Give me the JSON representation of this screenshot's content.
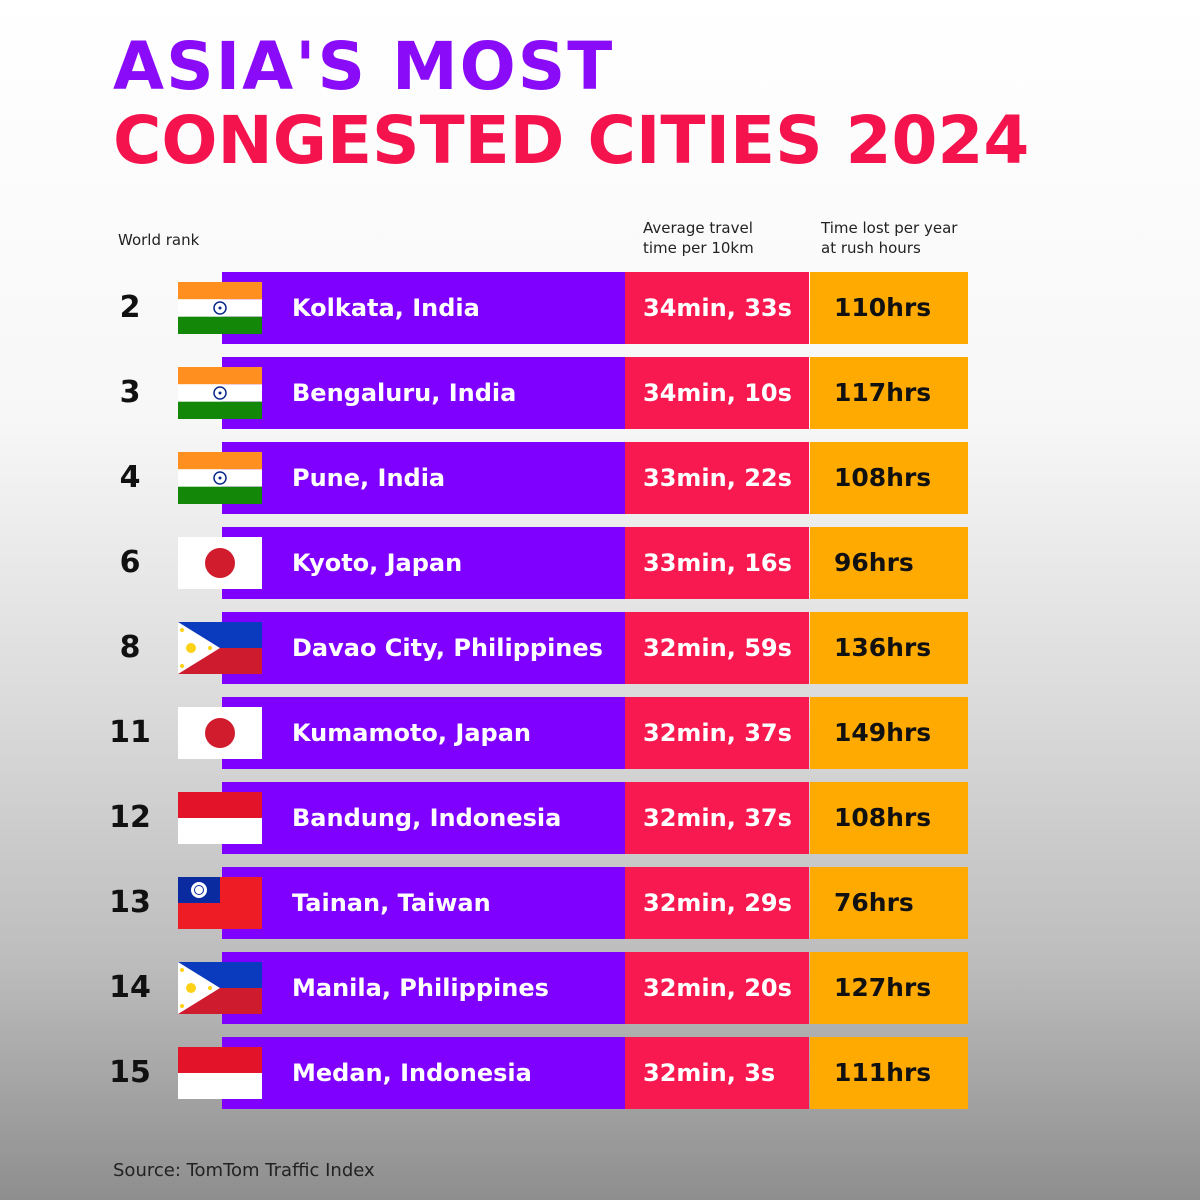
{
  "header": {
    "title_line1": "ASIA'S MOST",
    "title_line2": "CONGESTED CITIES 2024"
  },
  "table": {
    "columns": [
      "World rank",
      "Average travel time per 10km",
      "Time lost per year at rush hours"
    ],
    "rows": [
      [
        2,
        "Kolkata, India",
        "34min, 33s",
        "110hrs"
      ],
      [
        3,
        "Bengaluru, India",
        "34min, 10s",
        "117hrs"
      ],
      [
        4,
        "Pune, India",
        "33min, 22s",
        "108hrs"
      ],
      [
        6,
        "Kyoto, Japan",
        "33min, 16s",
        "96hrs"
      ],
      [
        8,
        "Davao City, Philippines",
        "32min, 59s",
        "136hrs"
      ],
      [
        11,
        "Kumamoto, Japan",
        "32min, 37s",
        "149hrs"
      ],
      [
        12,
        "Bandung, Indonesia",
        "32min, 37s",
        "108hrs"
      ],
      [
        13,
        "Tainan, Taiwan",
        "32min, 29s",
        "76hrs"
      ],
      [
        14,
        "Manila, Philippines",
        "32min, 20s",
        "127hrs"
      ],
      [
        15,
        "Medan, Indonesia",
        "32min, 3s",
        "111hrs"
      ]
    ]
  },
  "footer": {
    "source": "Source: TomTom Traffic Index"
  }
}
